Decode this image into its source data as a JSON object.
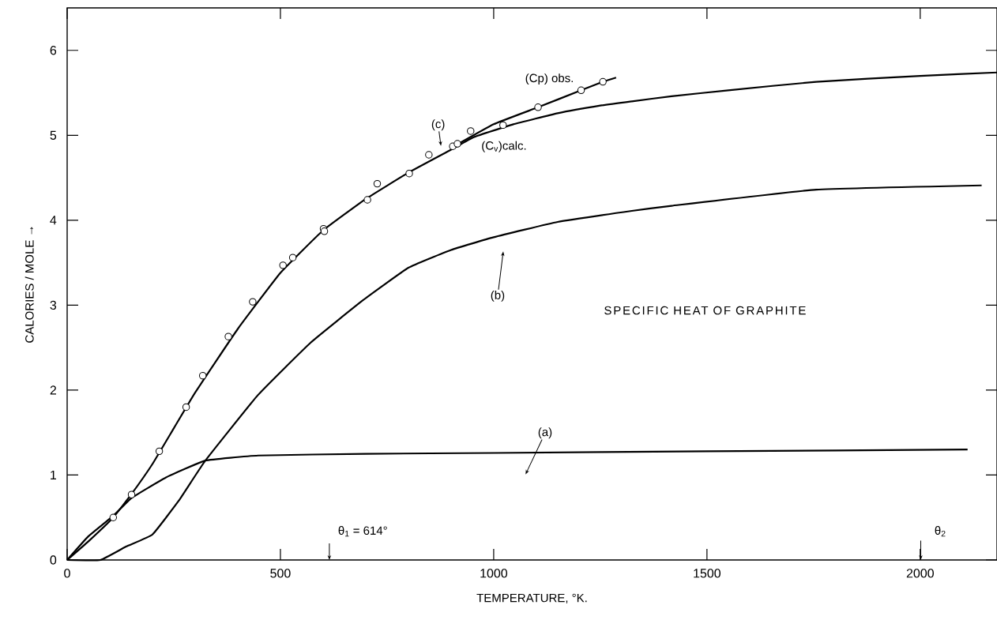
{
  "chart_data": {
    "type": "line",
    "title": "SPECIFIC HEAT OF GRAPHITE",
    "xlabel": "TEMPERATURE, °K.",
    "ylabel": "CALORIES / MOLE →",
    "xlim": [
      0,
      2180
    ],
    "ylim": [
      0,
      6.5
    ],
    "xticks": [
      0,
      500,
      1000,
      1500,
      2000
    ],
    "yticks": [
      0,
      1,
      2,
      3,
      4,
      5,
      6
    ],
    "legend": false,
    "grid": false,
    "series": [
      {
        "name": "(C$_{v}$)calc.",
        "color": "#000000",
        "x": [
          0,
          50,
          108,
          150,
          200,
          250,
          300,
          400,
          500,
          600,
          700,
          800,
          900,
          954,
          1046,
          1150,
          1250,
          1324,
          1417,
          1550,
          1756,
          2000,
          2180
        ],
        "values": [
          0,
          0.22,
          0.5,
          0.77,
          1.13,
          1.55,
          1.97,
          2.72,
          3.38,
          3.88,
          4.25,
          4.56,
          4.83,
          4.98,
          5.13,
          5.26,
          5.35,
          5.4,
          5.46,
          5.53,
          5.63,
          5.7,
          5.74
        ]
      },
      {
        "name": "(Cp) obs.",
        "color": "#000000",
        "x": [
          900,
          1000,
          1104,
          1205,
          1256,
          1287
        ],
        "values": [
          4.85,
          5.13,
          5.33,
          5.53,
          5.63,
          5.68
        ]
      },
      {
        "type": "scatter",
        "marker": "circle",
        "color": "#000000",
        "x": [
          108,
          151,
          216,
          279,
          318,
          378,
          435,
          506,
          529,
          601,
          603,
          704,
          727,
          802,
          848,
          904,
          915,
          946,
          1022,
          1104,
          1205,
          1256
        ],
        "values": [
          0.5,
          0.77,
          1.28,
          1.8,
          2.17,
          2.63,
          3.04,
          3.47,
          3.56,
          3.9,
          3.87,
          4.24,
          4.43,
          4.55,
          4.77,
          4.87,
          4.9,
          5.05,
          5.12,
          5.33,
          5.53,
          5.63
        ]
      },
      {
        "color": "#000000",
        "x": [
          0,
          78,
          139,
          200,
          262,
          324,
          447,
          571,
          694,
          800,
          900,
          1000,
          1150,
          1324,
          1417,
          1756,
          2144
        ],
        "values": [
          0,
          0,
          0.16,
          0.3,
          0.7,
          1.17,
          1.94,
          2.56,
          3.06,
          3.44,
          3.65,
          3.8,
          3.98,
          4.11,
          4.17,
          4.36,
          4.41
        ]
      },
      {
        "color": "#000000",
        "x": [
          0,
          50,
          108,
          151,
          231,
          324,
          448,
          700,
          1000,
          1500,
          2111
        ],
        "values": [
          0,
          0.28,
          0.52,
          0.73,
          0.97,
          1.17,
          1.23,
          1.25,
          1.26,
          1.28,
          1.3
        ]
      }
    ],
    "annotations": [
      "(a)",
      "(b)",
      "(c)",
      "θ$_{1}$ = 614°",
      "θ$_{2}$"
    ]
  }
}
